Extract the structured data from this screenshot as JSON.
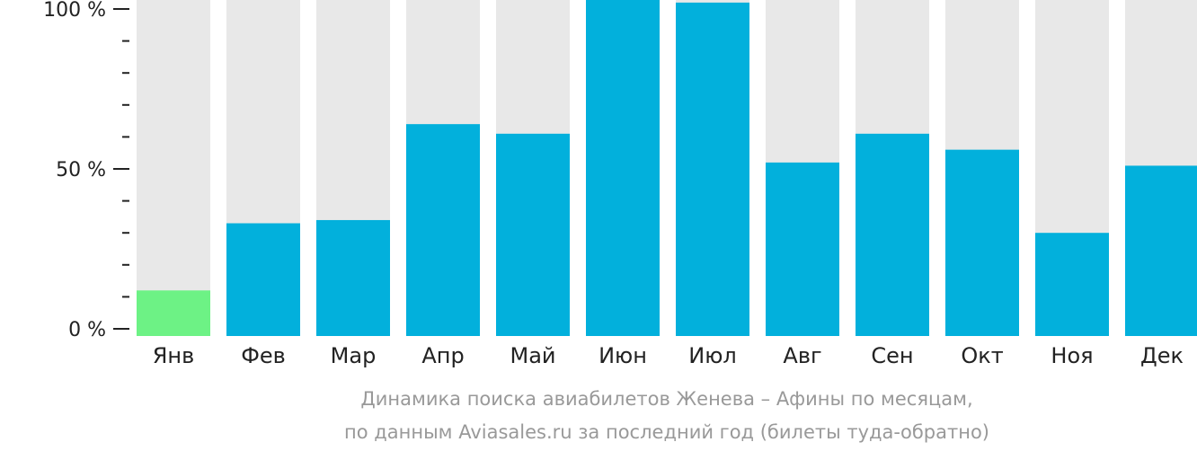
{
  "chart_data": {
    "type": "bar",
    "categories": [
      "Янв",
      "Фев",
      "Мар",
      "Апр",
      "Май",
      "Июн",
      "Июл",
      "Авг",
      "Сен",
      "Окт",
      "Ноя",
      "Дек"
    ],
    "values": [
      12,
      33,
      34,
      64,
      61,
      103,
      102,
      52,
      61,
      56,
      30,
      51
    ],
    "ylim": [
      0,
      100
    ],
    "yticks": [
      {
        "value": 100,
        "label": "100 %"
      },
      {
        "value": 50,
        "label": "50 %"
      },
      {
        "value": 0,
        "label": "0 %"
      }
    ],
    "minor_tick_step": 10,
    "caption_lines": [
      "Динамика поиска авиабилетов Женева – Афины по месяцам,",
      "по данным Aviasales.ru за последний год (билеты туда-обратно)"
    ],
    "colors": {
      "bar": "#02b0dc",
      "bar_min": "#6df285",
      "background_bar": "#e8e8e8",
      "axis": "#222222",
      "caption": "#999999"
    },
    "highlight_index": 0
  }
}
